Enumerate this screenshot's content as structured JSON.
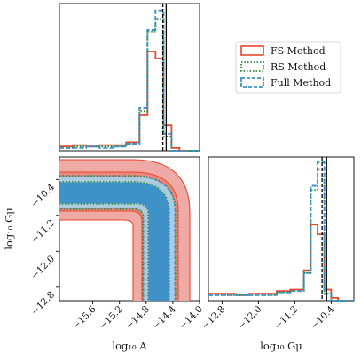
{
  "chart_data": {
    "type": "corner",
    "series": [
      {
        "name": "FS Method",
        "color": "#e8472c",
        "style": "solid"
      },
      {
        "name": "RS Method",
        "color": "#2e8b3a",
        "style": "dotted"
      },
      {
        "name": "Full Method",
        "color": "#3d93c6",
        "style": "dashed"
      }
    ],
    "legend": {
      "placement": "upper-right"
    },
    "params": {
      "A": {
        "label": "log₁₀ A",
        "range": [
          -16.1,
          -14.0
        ],
        "ticks": [
          -15.6,
          -15.2,
          -14.8,
          -14.4,
          -14.0
        ],
        "tick_labels": [
          "−15.6",
          "−15.2",
          "−14.8",
          "−14.4",
          "−14.0"
        ],
        "truth": -14.5,
        "median": -14.55
      },
      "Gmu": {
        "label": "log₁₀ Gμ",
        "range": [
          -13.1,
          -9.9
        ],
        "ticks": [
          -12.8,
          -12.0,
          -11.2,
          -10.4
        ],
        "tick_labels": [
          "−12.8",
          "−12.0",
          "−11.2",
          "−10.4"
        ],
        "y_tick_labels": [
          "−10.4",
          "−11.2",
          "−12.0",
          "−12.8"
        ],
        "truth": -10.5,
        "median": -10.6
      }
    },
    "hist_A": {
      "edges": [
        -16.1,
        -15.9,
        -15.7,
        -15.5,
        -15.3,
        -15.1,
        -14.9,
        -14.78,
        -14.66,
        -14.54,
        -14.42,
        -14.3,
        -14.0
      ],
      "FS Method": [
        0.03,
        0.04,
        0.03,
        0.04,
        0.04,
        0.06,
        0.25,
        0.7,
        0.65,
        0.18,
        0.02,
        0.0
      ],
      "RS Method": [
        0.02,
        0.03,
        0.03,
        0.03,
        0.03,
        0.05,
        0.28,
        0.84,
        0.93,
        0.1,
        0.0,
        0.0
      ],
      "Full Method": [
        0.02,
        0.02,
        0.03,
        0.02,
        0.03,
        0.05,
        0.3,
        0.85,
        0.99,
        0.12,
        0.0,
        0.0
      ]
    },
    "hist_Gmu": {
      "edges": [
        -13.1,
        -12.8,
        -12.5,
        -12.2,
        -11.9,
        -11.6,
        -11.3,
        -11.0,
        -10.85,
        -10.7,
        -10.55,
        -10.4,
        -10.25,
        -9.9
      ],
      "FS Method": [
        0.05,
        0.05,
        0.04,
        0.05,
        0.05,
        0.07,
        0.08,
        0.22,
        0.55,
        0.48,
        0.08,
        0.02,
        0.0
      ],
      "RS Method": [
        0.04,
        0.04,
        0.04,
        0.04,
        0.04,
        0.06,
        0.07,
        0.2,
        0.8,
        0.95,
        0.05,
        0.0,
        0.0
      ],
      "Full Method": [
        0.04,
        0.04,
        0.04,
        0.04,
        0.04,
        0.06,
        0.07,
        0.2,
        0.83,
        1.0,
        0.05,
        0.0,
        0.0
      ]
    }
  }
}
